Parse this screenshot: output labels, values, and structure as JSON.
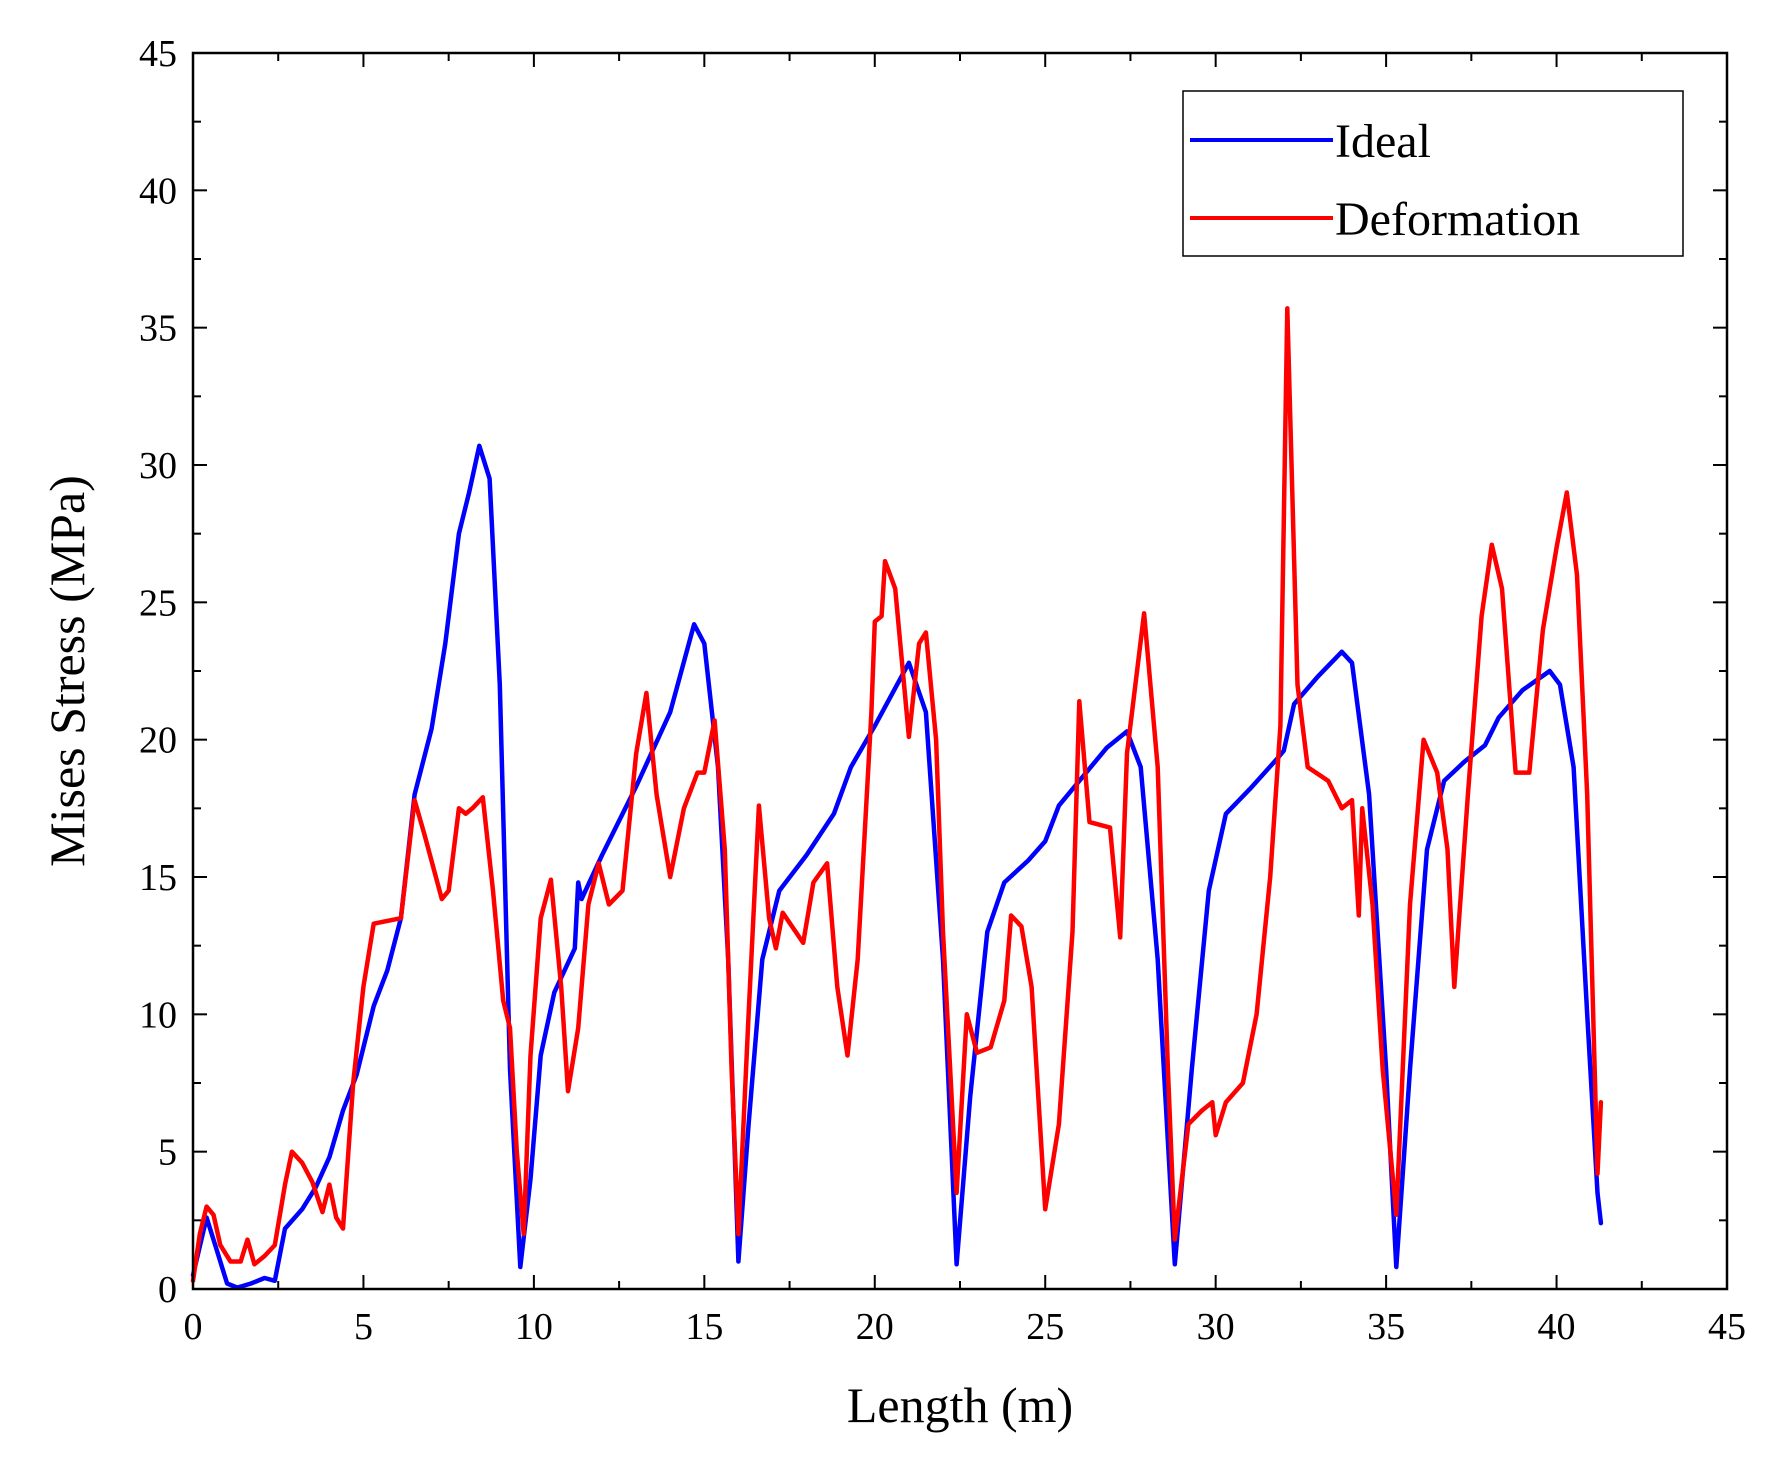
{
  "chart_data": {
    "type": "line",
    "title": "",
    "xlabel": "Length (m)",
    "ylabel": "Mises Stress (MPa)",
    "xlim": [
      0,
      45
    ],
    "ylim": [
      0,
      45
    ],
    "xticks": [
      "0",
      "5",
      "10",
      "15",
      "20",
      "25",
      "30",
      "35",
      "40",
      "45"
    ],
    "yticks": [
      "0",
      "5",
      "10",
      "15",
      "20",
      "25",
      "30",
      "35",
      "40",
      "45"
    ],
    "grid": false,
    "legend_position": "top-right",
    "series": [
      {
        "name": "Ideal",
        "color": "#0000ff",
        "points": [
          [
            0,
            0.5
          ],
          [
            0.4,
            2.6
          ],
          [
            0.7,
            1.4
          ],
          [
            1.0,
            0.2
          ],
          [
            1.3,
            0.05
          ],
          [
            1.7,
            0.2
          ],
          [
            2.1,
            0.4
          ],
          [
            2.4,
            0.3
          ],
          [
            2.7,
            2.2
          ],
          [
            3.2,
            2.9
          ],
          [
            3.6,
            3.7
          ],
          [
            4.0,
            4.8
          ],
          [
            4.4,
            6.5
          ],
          [
            4.8,
            7.8
          ],
          [
            5.3,
            10.3
          ],
          [
            5.7,
            11.6
          ],
          [
            6.1,
            13.5
          ],
          [
            6.5,
            18.0
          ],
          [
            7.0,
            20.4
          ],
          [
            7.4,
            23.5
          ],
          [
            7.8,
            27.5
          ],
          [
            8.1,
            29.0
          ],
          [
            8.4,
            30.7
          ],
          [
            8.7,
            29.5
          ],
          [
            9.0,
            22.0
          ],
          [
            9.3,
            8.0
          ],
          [
            9.6,
            0.8
          ],
          [
            9.9,
            4.0
          ],
          [
            10.2,
            8.5
          ],
          [
            10.6,
            10.8
          ],
          [
            11.2,
            12.4
          ],
          [
            11.3,
            14.8
          ],
          [
            11.4,
            14.2
          ],
          [
            12.0,
            15.8
          ],
          [
            13.0,
            18.3
          ],
          [
            14.0,
            21.0
          ],
          [
            14.7,
            24.2
          ],
          [
            15.0,
            23.5
          ],
          [
            15.4,
            19.0
          ],
          [
            15.7,
            12.0
          ],
          [
            16.0,
            1.0
          ],
          [
            16.3,
            6.0
          ],
          [
            16.7,
            12.0
          ],
          [
            17.2,
            14.5
          ],
          [
            18.0,
            15.8
          ],
          [
            18.8,
            17.3
          ],
          [
            19.3,
            19.0
          ],
          [
            20.0,
            20.5
          ],
          [
            21.0,
            22.8
          ],
          [
            21.5,
            21.0
          ],
          [
            22.0,
            12.0
          ],
          [
            22.4,
            0.9
          ],
          [
            22.8,
            7.0
          ],
          [
            23.3,
            13.0
          ],
          [
            23.8,
            14.8
          ],
          [
            24.5,
            15.6
          ],
          [
            25.0,
            16.3
          ],
          [
            25.4,
            17.6
          ],
          [
            26.0,
            18.5
          ],
          [
            26.8,
            19.7
          ],
          [
            27.4,
            20.3
          ],
          [
            27.8,
            19.0
          ],
          [
            28.3,
            12.0
          ],
          [
            28.8,
            0.9
          ],
          [
            29.3,
            8.0
          ],
          [
            29.8,
            14.5
          ],
          [
            30.3,
            17.3
          ],
          [
            31.0,
            18.2
          ],
          [
            31.8,
            19.3
          ],
          [
            32.0,
            19.6
          ],
          [
            32.3,
            21.3
          ],
          [
            33.0,
            22.3
          ],
          [
            33.7,
            23.2
          ],
          [
            34.0,
            22.8
          ],
          [
            34.5,
            18.0
          ],
          [
            35.0,
            8.0
          ],
          [
            35.3,
            0.8
          ],
          [
            35.7,
            8.0
          ],
          [
            36.2,
            16.0
          ],
          [
            36.7,
            18.5
          ],
          [
            37.3,
            19.2
          ],
          [
            37.9,
            19.8
          ],
          [
            38.3,
            20.8
          ],
          [
            39.0,
            21.8
          ],
          [
            39.8,
            22.5
          ],
          [
            40.1,
            22.0
          ],
          [
            40.5,
            19.0
          ],
          [
            40.9,
            10.0
          ],
          [
            41.2,
            3.5
          ],
          [
            41.3,
            2.4
          ]
        ]
      },
      {
        "name": "Deformation",
        "color": "#ff0000",
        "points": [
          [
            0,
            0.3
          ],
          [
            0.2,
            2.0
          ],
          [
            0.4,
            3.0
          ],
          [
            0.6,
            2.7
          ],
          [
            0.8,
            1.6
          ],
          [
            1.1,
            1.0
          ],
          [
            1.4,
            1.0
          ],
          [
            1.6,
            1.8
          ],
          [
            1.8,
            0.9
          ],
          [
            2.1,
            1.2
          ],
          [
            2.4,
            1.6
          ],
          [
            2.7,
            3.8
          ],
          [
            2.9,
            5.0
          ],
          [
            3.2,
            4.6
          ],
          [
            3.5,
            3.9
          ],
          [
            3.8,
            2.8
          ],
          [
            4.0,
            3.8
          ],
          [
            4.2,
            2.6
          ],
          [
            4.4,
            2.2
          ],
          [
            4.7,
            7.5
          ],
          [
            5.0,
            11.0
          ],
          [
            5.3,
            13.3
          ],
          [
            5.7,
            13.4
          ],
          [
            6.1,
            13.5
          ],
          [
            6.5,
            17.8
          ],
          [
            6.8,
            16.5
          ],
          [
            7.3,
            14.2
          ],
          [
            7.5,
            14.5
          ],
          [
            7.8,
            17.5
          ],
          [
            8.0,
            17.3
          ],
          [
            8.2,
            17.5
          ],
          [
            8.5,
            17.9
          ],
          [
            8.8,
            14.5
          ],
          [
            9.1,
            10.5
          ],
          [
            9.3,
            9.5
          ],
          [
            9.5,
            5.0
          ],
          [
            9.7,
            2.0
          ],
          [
            9.9,
            8.5
          ],
          [
            10.2,
            13.5
          ],
          [
            10.5,
            14.9
          ],
          [
            10.8,
            11.0
          ],
          [
            11.0,
            7.2
          ],
          [
            11.3,
            9.5
          ],
          [
            11.6,
            14.0
          ],
          [
            11.9,
            15.5
          ],
          [
            12.2,
            14.0
          ],
          [
            12.6,
            14.5
          ],
          [
            13.0,
            19.5
          ],
          [
            13.3,
            21.7
          ],
          [
            13.6,
            18.0
          ],
          [
            14.0,
            15.0
          ],
          [
            14.4,
            17.5
          ],
          [
            14.8,
            18.8
          ],
          [
            15.0,
            18.8
          ],
          [
            15.3,
            20.7
          ],
          [
            15.6,
            16.0
          ],
          [
            15.8,
            8.0
          ],
          [
            16.0,
            2.0
          ],
          [
            16.3,
            10.0
          ],
          [
            16.6,
            17.6
          ],
          [
            16.9,
            13.5
          ],
          [
            17.1,
            12.4
          ],
          [
            17.3,
            13.7
          ],
          [
            17.9,
            12.6
          ],
          [
            18.2,
            14.8
          ],
          [
            18.6,
            15.5
          ],
          [
            18.9,
            11.0
          ],
          [
            19.2,
            8.5
          ],
          [
            19.5,
            12.0
          ],
          [
            19.9,
            21.0
          ],
          [
            20.0,
            24.3
          ],
          [
            20.2,
            24.5
          ],
          [
            20.3,
            26.5
          ],
          [
            20.6,
            25.5
          ],
          [
            21.0,
            20.1
          ],
          [
            21.3,
            23.5
          ],
          [
            21.5,
            23.9
          ],
          [
            21.8,
            20.0
          ],
          [
            22.0,
            13.0
          ],
          [
            22.4,
            3.5
          ],
          [
            22.7,
            10.0
          ],
          [
            23.0,
            8.6
          ],
          [
            23.4,
            8.8
          ],
          [
            23.8,
            10.5
          ],
          [
            24.0,
            13.6
          ],
          [
            24.3,
            13.2
          ],
          [
            24.6,
            11.0
          ],
          [
            25.0,
            2.9
          ],
          [
            25.4,
            6.0
          ],
          [
            25.8,
            13.0
          ],
          [
            26.0,
            21.4
          ],
          [
            26.3,
            17.0
          ],
          [
            26.9,
            16.8
          ],
          [
            27.2,
            12.8
          ],
          [
            27.4,
            19.5
          ],
          [
            27.9,
            24.6
          ],
          [
            28.3,
            19.0
          ],
          [
            28.6,
            8.0
          ],
          [
            28.8,
            1.8
          ],
          [
            29.2,
            6.0
          ],
          [
            29.6,
            6.5
          ],
          [
            29.9,
            6.8
          ],
          [
            30.0,
            5.6
          ],
          [
            30.3,
            6.8
          ],
          [
            30.8,
            7.5
          ],
          [
            31.2,
            10.0
          ],
          [
            31.6,
            15.0
          ],
          [
            31.9,
            20.5
          ],
          [
            32.1,
            35.7
          ],
          [
            32.4,
            22.0
          ],
          [
            32.7,
            19.0
          ],
          [
            33.3,
            18.5
          ],
          [
            33.7,
            17.5
          ],
          [
            34.0,
            17.8
          ],
          [
            34.2,
            13.6
          ],
          [
            34.3,
            17.5
          ],
          [
            34.6,
            14.0
          ],
          [
            34.9,
            8.0
          ],
          [
            35.3,
            2.7
          ],
          [
            35.7,
            14.0
          ],
          [
            36.1,
            20.0
          ],
          [
            36.5,
            18.8
          ],
          [
            36.8,
            16.0
          ],
          [
            37.0,
            11.0
          ],
          [
            37.4,
            18.0
          ],
          [
            37.8,
            24.5
          ],
          [
            38.1,
            27.1
          ],
          [
            38.4,
            25.5
          ],
          [
            38.8,
            18.8
          ],
          [
            39.2,
            18.8
          ],
          [
            39.6,
            24.0
          ],
          [
            40.0,
            27.0
          ],
          [
            40.3,
            29.0
          ],
          [
            40.6,
            26.0
          ],
          [
            40.9,
            18.0
          ],
          [
            41.2,
            4.2
          ],
          [
            41.3,
            6.8
          ]
        ]
      }
    ]
  }
}
